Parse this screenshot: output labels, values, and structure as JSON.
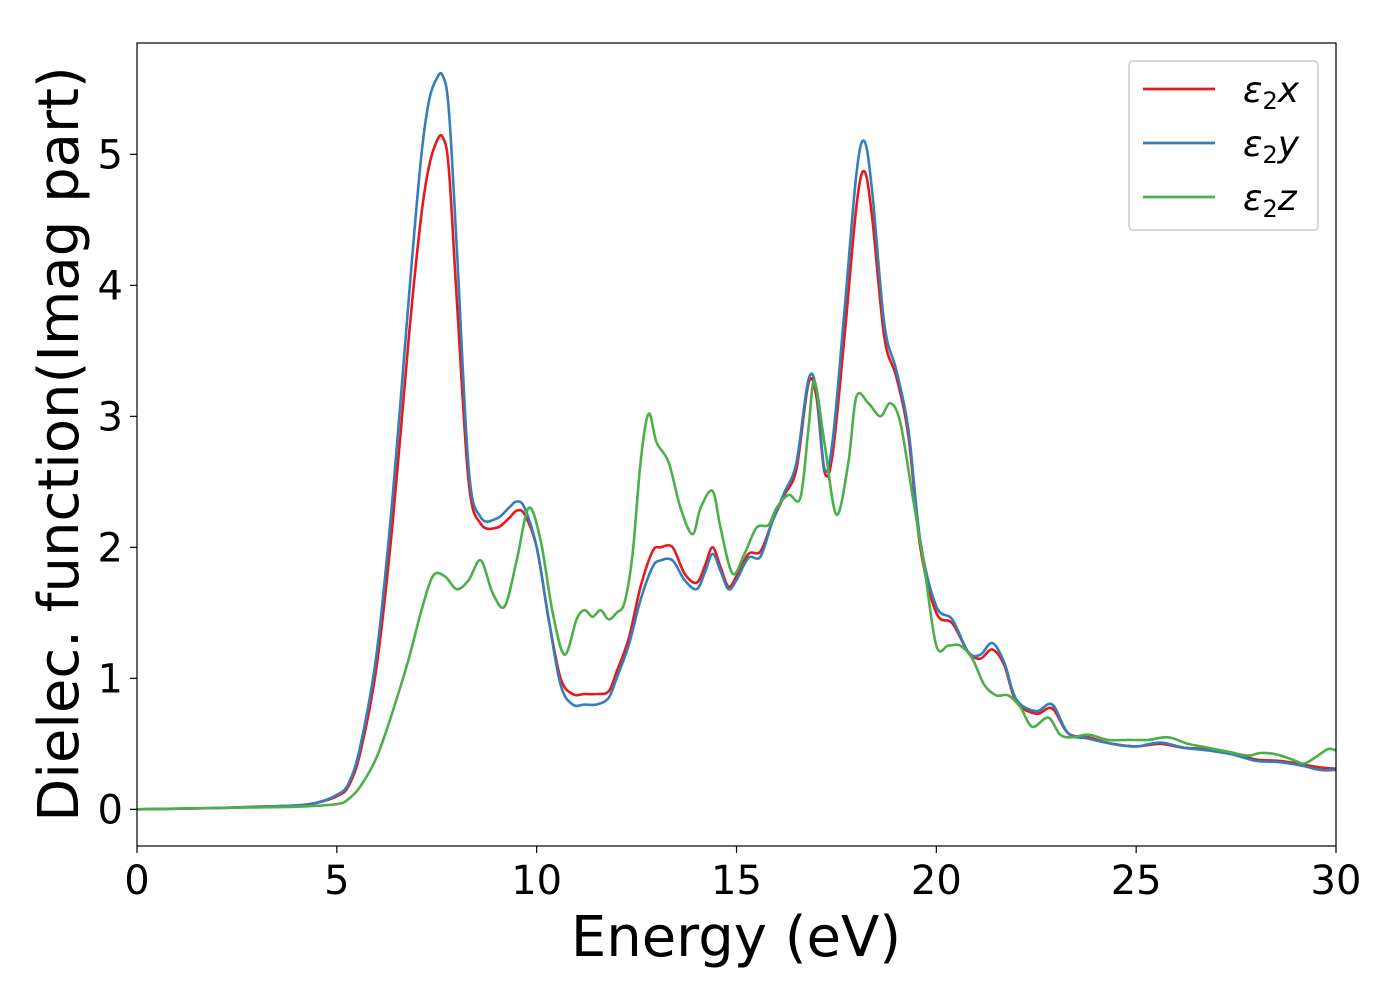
{
  "chart_data": {
    "type": "line",
    "xlabel": "Energy (eV)",
    "ylabel": "Dielec. function(Imag part)",
    "xlim": [
      0,
      30
    ],
    "ylim": [
      -0.28,
      5.85
    ],
    "xticks": [
      "0",
      "5",
      "10",
      "15",
      "20",
      "25",
      "30"
    ],
    "yticks": [
      "0",
      "1",
      "2",
      "3",
      "4",
      "5"
    ],
    "grid": false,
    "legend_position": "top-right",
    "series": [
      {
        "name": "ε2x",
        "legend": {
          "sym": "ε",
          "sub": "2",
          "var": "x"
        },
        "color": "#e41a1c",
        "x": [
          0,
          2,
          3,
          4,
          4.5,
          5,
          5.3,
          5.6,
          6.0,
          6.4,
          6.8,
          7.1,
          7.3,
          7.5,
          7.65,
          7.8,
          8.0,
          8.3,
          8.6,
          9.0,
          9.3,
          9.5,
          9.7,
          10.0,
          10.3,
          10.6,
          10.9,
          11.2,
          11.5,
          11.8,
          12.0,
          12.3,
          12.6,
          12.9,
          13.1,
          13.4,
          13.7,
          14.0,
          14.2,
          14.4,
          14.6,
          14.8,
          15.0,
          15.3,
          15.6,
          15.9,
          16.2,
          16.5,
          16.8,
          17.0,
          17.2,
          17.4,
          17.7,
          18.0,
          18.2,
          18.4,
          18.7,
          19.0,
          19.3,
          19.6,
          20.0,
          20.4,
          20.8,
          21.1,
          21.4,
          21.7,
          22.0,
          22.5,
          22.9,
          23.3,
          23.8,
          24.4,
          25.0,
          25.6,
          26.2,
          26.8,
          27.4,
          28.0,
          28.6,
          29.2,
          29.6,
          30.0
        ],
        "y": [
          0.0,
          0.01,
          0.02,
          0.03,
          0.05,
          0.1,
          0.18,
          0.45,
          1.1,
          2.2,
          3.6,
          4.5,
          4.9,
          5.1,
          5.13,
          4.9,
          3.9,
          2.5,
          2.18,
          2.15,
          2.22,
          2.28,
          2.25,
          2.0,
          1.45,
          1.0,
          0.88,
          0.88,
          0.88,
          0.9,
          1.05,
          1.3,
          1.7,
          1.97,
          2.0,
          2.0,
          1.8,
          1.73,
          1.85,
          2.0,
          1.85,
          1.7,
          1.78,
          1.95,
          1.97,
          2.2,
          2.4,
          2.6,
          3.25,
          3.15,
          2.58,
          2.7,
          3.6,
          4.6,
          4.87,
          4.5,
          3.6,
          3.3,
          2.85,
          2.0,
          1.5,
          1.42,
          1.2,
          1.15,
          1.22,
          1.1,
          0.82,
          0.73,
          0.77,
          0.58,
          0.55,
          0.5,
          0.48,
          0.5,
          0.47,
          0.46,
          0.43,
          0.38,
          0.37,
          0.34,
          0.32,
          0.31
        ]
      },
      {
        "name": "ε2y",
        "legend": {
          "sym": "ε",
          "sub": "2",
          "var": "y"
        },
        "color": "#377eb8",
        "x": [
          0,
          2,
          3,
          4,
          4.5,
          5,
          5.3,
          5.6,
          6.0,
          6.4,
          6.8,
          7.1,
          7.3,
          7.5,
          7.65,
          7.8,
          8.0,
          8.3,
          8.6,
          9.0,
          9.3,
          9.5,
          9.7,
          10.0,
          10.3,
          10.6,
          10.9,
          11.2,
          11.5,
          11.8,
          12.0,
          12.3,
          12.6,
          12.9,
          13.1,
          13.4,
          13.7,
          14.0,
          14.2,
          14.4,
          14.6,
          14.8,
          15.0,
          15.3,
          15.6,
          15.9,
          16.2,
          16.5,
          16.8,
          17.0,
          17.2,
          17.4,
          17.7,
          18.0,
          18.2,
          18.4,
          18.7,
          19.0,
          19.3,
          19.6,
          20.0,
          20.4,
          20.8,
          21.1,
          21.4,
          21.7,
          22.0,
          22.5,
          22.9,
          23.3,
          23.8,
          24.4,
          25.0,
          25.6,
          26.2,
          26.8,
          27.4,
          28.0,
          28.6,
          29.2,
          29.6,
          30.0
        ],
        "y": [
          0.0,
          0.01,
          0.02,
          0.03,
          0.05,
          0.11,
          0.2,
          0.5,
          1.2,
          2.4,
          3.9,
          4.95,
          5.4,
          5.58,
          5.6,
          5.35,
          4.3,
          2.6,
          2.23,
          2.22,
          2.3,
          2.35,
          2.3,
          2.0,
          1.45,
          0.95,
          0.8,
          0.8,
          0.8,
          0.85,
          1.0,
          1.25,
          1.6,
          1.85,
          1.9,
          1.9,
          1.75,
          1.68,
          1.8,
          1.95,
          1.82,
          1.68,
          1.75,
          1.92,
          1.93,
          2.2,
          2.42,
          2.65,
          3.28,
          3.2,
          2.6,
          2.8,
          3.8,
          4.85,
          5.1,
          4.7,
          3.7,
          3.35,
          2.9,
          2.05,
          1.55,
          1.45,
          1.2,
          1.18,
          1.27,
          1.12,
          0.84,
          0.75,
          0.8,
          0.58,
          0.54,
          0.5,
          0.48,
          0.51,
          0.47,
          0.45,
          0.42,
          0.37,
          0.36,
          0.33,
          0.3,
          0.3
        ]
      },
      {
        "name": "ε2z",
        "legend": {
          "sym": "ε",
          "sub": "2",
          "var": "z"
        },
        "color": "#4daf4a",
        "x": [
          0,
          2,
          3,
          4,
          5,
          5.3,
          5.6,
          6.0,
          6.4,
          6.8,
          7.1,
          7.4,
          7.7,
          8.0,
          8.3,
          8.6,
          8.9,
          9.2,
          9.5,
          9.8,
          10.1,
          10.4,
          10.7,
          11.0,
          11.2,
          11.4,
          11.6,
          11.8,
          12.0,
          12.2,
          12.4,
          12.6,
          12.8,
          13.0,
          13.3,
          13.6,
          13.9,
          14.1,
          14.4,
          14.6,
          14.9,
          15.2,
          15.5,
          15.8,
          16.0,
          16.3,
          16.6,
          16.8,
          16.95,
          17.2,
          17.5,
          17.8,
          18.0,
          18.3,
          18.6,
          18.85,
          19.1,
          19.4,
          19.7,
          20.0,
          20.3,
          20.6,
          20.9,
          21.2,
          21.5,
          21.8,
          22.1,
          22.4,
          22.8,
          23.1,
          23.4,
          23.8,
          24.3,
          24.8,
          25.3,
          25.8,
          26.3,
          26.8,
          27.3,
          27.8,
          28.1,
          28.5,
          28.9,
          29.2,
          29.5,
          29.8,
          30.0
        ],
        "y": [
          0.0,
          0.01,
          0.015,
          0.02,
          0.04,
          0.08,
          0.18,
          0.4,
          0.75,
          1.15,
          1.5,
          1.78,
          1.78,
          1.68,
          1.75,
          1.9,
          1.65,
          1.55,
          1.9,
          2.3,
          2.05,
          1.5,
          1.18,
          1.45,
          1.52,
          1.47,
          1.52,
          1.45,
          1.5,
          1.58,
          1.95,
          2.65,
          3.02,
          2.8,
          2.65,
          2.3,
          2.1,
          2.3,
          2.43,
          2.15,
          1.8,
          1.95,
          2.15,
          2.17,
          2.3,
          2.4,
          2.38,
          2.9,
          3.27,
          2.8,
          2.25,
          2.65,
          3.15,
          3.1,
          3.0,
          3.1,
          2.95,
          2.4,
          1.85,
          1.25,
          1.25,
          1.25,
          1.15,
          0.95,
          0.87,
          0.87,
          0.78,
          0.63,
          0.7,
          0.57,
          0.55,
          0.57,
          0.53,
          0.53,
          0.53,
          0.55,
          0.5,
          0.47,
          0.44,
          0.41,
          0.43,
          0.42,
          0.38,
          0.35,
          0.4,
          0.46,
          0.45
        ]
      }
    ]
  }
}
